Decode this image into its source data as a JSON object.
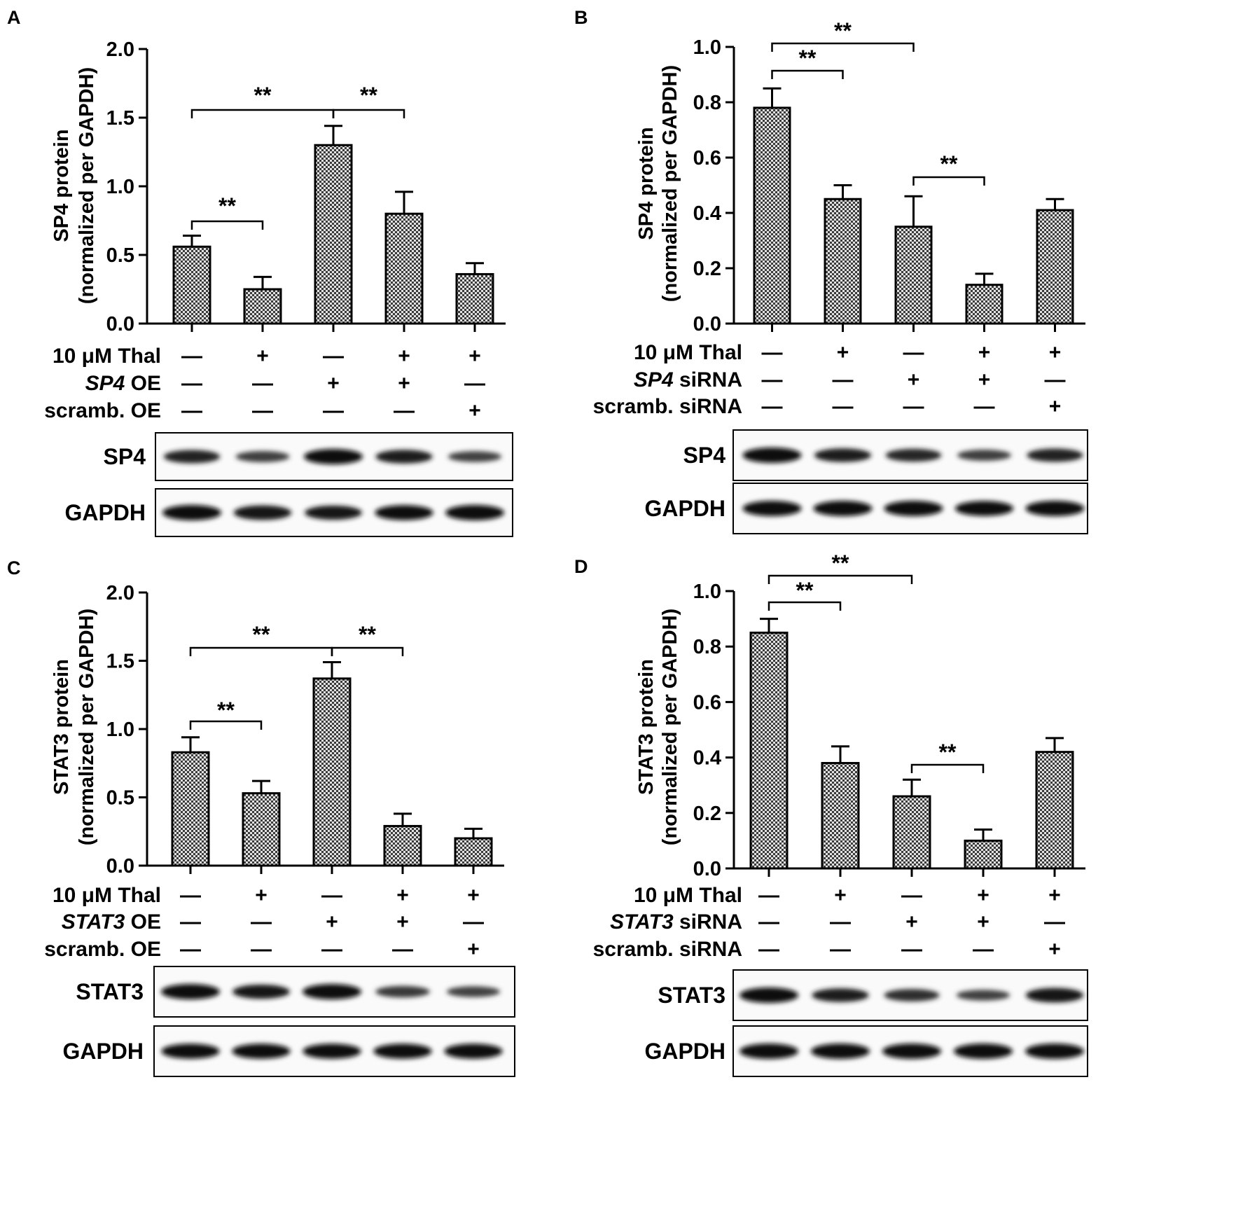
{
  "chart_data": [
    {
      "panel": "A",
      "type": "bar",
      "ylabel_lines": [
        "SP4 protein",
        "(normalized per GAPDH)"
      ],
      "ylim": [
        0,
        2.0
      ],
      "yticks": [
        "0.0",
        "0.5",
        "1.0",
        "1.5",
        "2.0"
      ],
      "values": [
        0.56,
        0.25,
        1.3,
        0.8,
        0.36
      ],
      "errors": [
        0.08,
        0.09,
        0.14,
        0.16,
        0.08
      ],
      "bar_fill": "#a8a8a8",
      "significance": [
        {
          "from": 0,
          "to": 1,
          "label": "**"
        },
        {
          "from": 0,
          "to": 2,
          "label": "**"
        },
        {
          "from": 2,
          "to": 3,
          "label": "**"
        }
      ],
      "conditions": [
        {
          "label": "10 μM Thal",
          "label_italic": "",
          "label_rest": "",
          "signs": [
            "—",
            "+",
            "—",
            "+",
            "+"
          ]
        },
        {
          "label": "",
          "label_italic": "SP4",
          "label_rest": " OE",
          "signs": [
            "—",
            "—",
            "+",
            "+",
            "—"
          ]
        },
        {
          "label": "scramb. OE",
          "label_italic": "",
          "label_rest": "",
          "signs": [
            "—",
            "—",
            "—",
            "—",
            "+"
          ]
        }
      ],
      "blots": [
        {
          "label": "SP4",
          "intensities": [
            0.75,
            0.5,
            1.0,
            0.8,
            0.45
          ]
        },
        {
          "label": "GAPDH",
          "intensities": [
            1.0,
            0.9,
            0.85,
            0.95,
            1.0
          ]
        }
      ]
    },
    {
      "panel": "B",
      "type": "bar",
      "ylabel_lines": [
        "SP4 protein",
        "(normalized per GAPDH)"
      ],
      "ylim": [
        0,
        1.0
      ],
      "yticks": [
        "0.0",
        "0.2",
        "0.4",
        "0.6",
        "0.8",
        "1.0"
      ],
      "values": [
        0.78,
        0.45,
        0.35,
        0.14,
        0.41
      ],
      "errors": [
        0.07,
        0.05,
        0.11,
        0.04,
        0.04
      ],
      "bar_fill": "#a8a8a8",
      "significance": [
        {
          "from": 0,
          "to": 1,
          "label": "**"
        },
        {
          "from": 0,
          "to": 2,
          "label": "**"
        },
        {
          "from": 2,
          "to": 3,
          "label": "**"
        }
      ],
      "conditions": [
        {
          "label": "10 μM Thal",
          "label_italic": "",
          "label_rest": "",
          "signs": [
            "—",
            "+",
            "—",
            "+",
            "+"
          ]
        },
        {
          "label": "",
          "label_italic": "SP4",
          "label_rest": " siRNA",
          "signs": [
            "—",
            "—",
            "+",
            "+",
            "—"
          ]
        },
        {
          "label": "scramb. siRNA",
          "label_italic": "",
          "label_rest": "",
          "signs": [
            "—",
            "—",
            "—",
            "—",
            "+"
          ]
        }
      ],
      "blots": [
        {
          "label": "SP4",
          "intensities": [
            1.0,
            0.8,
            0.7,
            0.5,
            0.75
          ]
        },
        {
          "label": "GAPDH",
          "intensities": [
            1.0,
            1.0,
            1.0,
            0.95,
            1.0
          ]
        }
      ]
    },
    {
      "panel": "C",
      "type": "bar",
      "ylabel_lines": [
        "STAT3 protein",
        "(normalized per GAPDH)"
      ],
      "ylim": [
        0,
        2.0
      ],
      "yticks": [
        "0.0",
        "0.5",
        "1.0",
        "1.5",
        "2.0"
      ],
      "values": [
        0.83,
        0.53,
        1.37,
        0.29,
        0.2
      ],
      "errors": [
        0.11,
        0.09,
        0.12,
        0.09,
        0.07
      ],
      "bar_fill": "#a8a8a8",
      "significance": [
        {
          "from": 0,
          "to": 1,
          "label": "**"
        },
        {
          "from": 0,
          "to": 2,
          "label": "**"
        },
        {
          "from": 2,
          "to": 3,
          "label": "**"
        }
      ],
      "conditions": [
        {
          "label": "10 μM Thal",
          "label_italic": "",
          "label_rest": "",
          "signs": [
            "—",
            "+",
            "—",
            "+",
            "+"
          ]
        },
        {
          "label": "",
          "label_italic": "STAT3",
          "label_rest": " OE",
          "signs": [
            "—",
            "—",
            "+",
            "+",
            "—"
          ]
        },
        {
          "label": "scramb. OE",
          "label_italic": "",
          "label_rest": "",
          "signs": [
            "—",
            "—",
            "—",
            "—",
            "+"
          ]
        }
      ],
      "blots": [
        {
          "label": "STAT3",
          "intensities": [
            1.0,
            0.85,
            1.0,
            0.55,
            0.45
          ]
        },
        {
          "label": "GAPDH",
          "intensities": [
            0.95,
            0.95,
            0.95,
            0.95,
            0.95
          ]
        }
      ]
    },
    {
      "panel": "D",
      "type": "bar",
      "ylabel_lines": [
        "STAT3 protein",
        "(normalized per GAPDH)"
      ],
      "ylim": [
        0,
        1.0
      ],
      "yticks": [
        "0.0",
        "0.2",
        "0.4",
        "0.6",
        "0.8",
        "1.0"
      ],
      "values": [
        0.85,
        0.38,
        0.26,
        0.1,
        0.42
      ],
      "errors": [
        0.05,
        0.06,
        0.06,
        0.04,
        0.05
      ],
      "bar_fill": "#a8a8a8",
      "significance": [
        {
          "from": 0,
          "to": 1,
          "label": "**"
        },
        {
          "from": 0,
          "to": 2,
          "label": "**"
        },
        {
          "from": 2,
          "to": 3,
          "label": "**"
        }
      ],
      "conditions": [
        {
          "label": "10 μM Thal",
          "label_italic": "",
          "label_rest": "",
          "signs": [
            "—",
            "+",
            "—",
            "+",
            "+"
          ]
        },
        {
          "label": "",
          "label_italic": "STAT3",
          "label_rest": " siRNA",
          "signs": [
            "—",
            "—",
            "+",
            "+",
            "—"
          ]
        },
        {
          "label": "scramb. siRNA",
          "label_italic": "",
          "label_rest": "",
          "signs": [
            "—",
            "—",
            "—",
            "—",
            "+"
          ]
        }
      ],
      "blots": [
        {
          "label": "STAT3",
          "intensities": [
            1.0,
            0.8,
            0.65,
            0.45,
            0.9
          ]
        },
        {
          "label": "GAPDH",
          "intensities": [
            1.0,
            1.0,
            1.0,
            1.0,
            1.0
          ]
        }
      ]
    }
  ]
}
